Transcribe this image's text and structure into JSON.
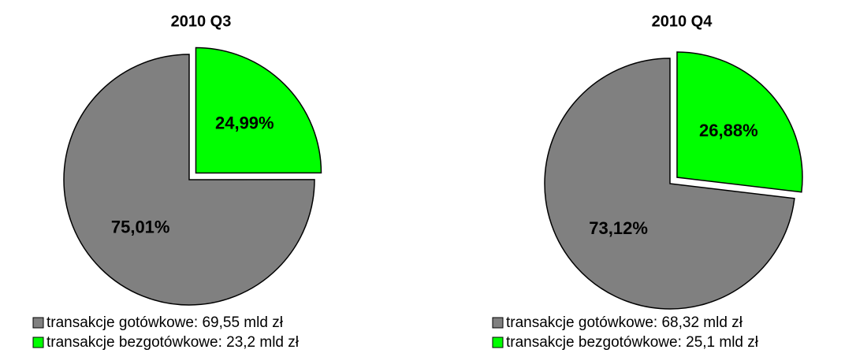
{
  "chart_data": [
    {
      "type": "pie",
      "title": "2010 Q3",
      "categories": [
        "transakcje gotówkowe: 69,55 mld zł",
        "transakcje bezgotówkowe: 23,2 mld zł"
      ],
      "values": [
        75.01,
        24.99
      ],
      "value_labels": [
        "75,01%",
        "24,99%"
      ],
      "colors": [
        "#808080",
        "#00ff00"
      ]
    },
    {
      "type": "pie",
      "title": "2010 Q4",
      "categories": [
        "transakcje gotówkowe: 68,32 mld zł",
        "transakcje bezgotówkowe: 25,1 mld zł"
      ],
      "values": [
        73.12,
        26.88
      ],
      "value_labels": [
        "73,12%",
        "26,88%"
      ],
      "colors": [
        "#808080",
        "#00ff00"
      ]
    }
  ]
}
